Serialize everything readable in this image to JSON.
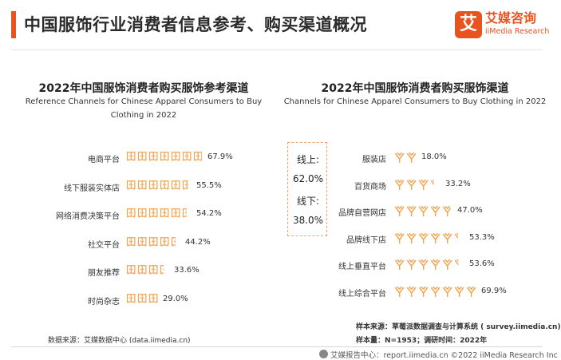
{
  "page_title": "中国服饰行业消费者信息参考、购买渠道概况",
  "logo": {
    "mark": "艾",
    "name_cn": "艾媒咨询",
    "name_en": "iiMedia Research"
  },
  "colors": {
    "accent": "#e8541f",
    "icon": "#f0a552",
    "box_border": "#f2a46b"
  },
  "chart_data": [
    {
      "type": "pictograph",
      "icon": "wardrobe-icon",
      "title": "2022年中国服饰消费者购买服饰参考渠道",
      "subtitle_line1": "Reference Channels for Chinese Apparel Consumers to Buy",
      "subtitle_line2": "Clothing in 2022",
      "unit_per_icon": 10,
      "categories": [
        "电商平台",
        "线下服装实体店",
        "网络消费决策平台",
        "社交平台",
        "朋友推荐",
        "时尚杂志"
      ],
      "values": [
        67.9,
        55.5,
        54.2,
        44.2,
        33.6,
        29.0
      ],
      "value_labels": [
        "67.9%",
        "55.5%",
        "54.2%",
        "44.2%",
        "33.6%",
        "29.0%"
      ]
    },
    {
      "type": "pictograph",
      "icon": "hanger-icon",
      "title": "2022年中国服饰消费者购买服饰渠道",
      "subtitle": "Channels for Chinese Apparel Consumers to Buy Clothing in 2022",
      "unit_per_icon": 10,
      "categories": [
        "服装店",
        "百货商场",
        "品牌自营网店",
        "品牌线下店",
        "线上垂直平台",
        "线上综合平台"
      ],
      "values": [
        18.0,
        33.2,
        47.0,
        53.3,
        53.6,
        69.9
      ],
      "value_labels": [
        "18.0%",
        "33.2%",
        "47.0%",
        "53.3%",
        "53.6%",
        "69.9%"
      ],
      "summary": {
        "online_label": "线上:",
        "online_value": "62.0%",
        "offline_label": "线下:",
        "offline_value": "38.0%"
      }
    }
  ],
  "sources": {
    "left": "数据来源：艾媒数据中心 (data.iimedia.cn)",
    "sample_source_label": "样本来源：",
    "sample_source": "草莓派数据调查与计算系统 ( survey.iimedia.cn)",
    "sample_size_label": "样本量：",
    "sample_size": "N=1953；调研时间：2022年"
  },
  "footer": {
    "text": "艾媒报告中心：report.iimedia.cn  ©2022  iiMedia Research Inc"
  }
}
